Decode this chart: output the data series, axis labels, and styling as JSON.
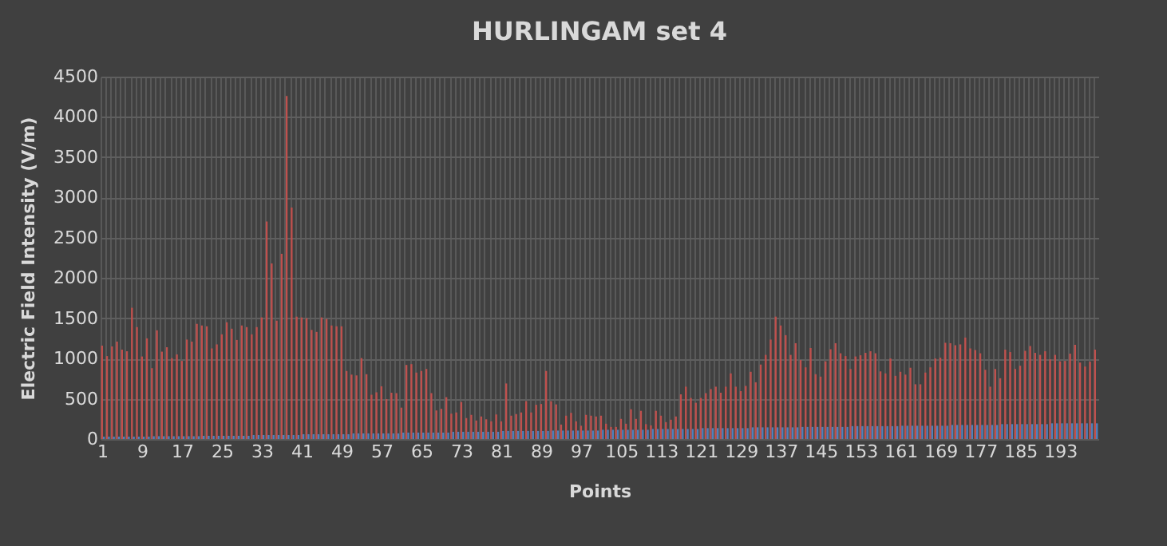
{
  "chart_data": {
    "type": "bar",
    "title": "HURLINGAM set 4",
    "xlabel": "Points",
    "ylabel": "Electric Field Intensity (V/m)",
    "categories": [
      "1",
      null,
      null,
      null,
      null,
      null,
      null,
      null,
      "9",
      null,
      null,
      null,
      null,
      null,
      null,
      null,
      "17",
      null,
      null,
      null,
      null,
      null,
      null,
      null,
      "25",
      null,
      null,
      null,
      null,
      null,
      null,
      null,
      "33",
      null,
      null,
      null,
      null,
      null,
      null,
      null,
      "41",
      null,
      null,
      null,
      null,
      null,
      null,
      null,
      "49",
      null,
      null,
      null,
      null,
      null,
      null,
      null,
      "57",
      null,
      null,
      null,
      null,
      null,
      null,
      null,
      "65",
      null,
      null,
      null,
      null,
      null,
      null,
      null,
      "73",
      null,
      null,
      null,
      null,
      null,
      null,
      null,
      "81",
      null,
      null,
      null,
      null,
      null,
      null,
      null,
      "89",
      null,
      null,
      null,
      null,
      null,
      null,
      null,
      "97",
      null,
      null,
      null,
      null,
      null,
      null,
      null,
      "105",
      null,
      null,
      null,
      null,
      null,
      null,
      null,
      "113",
      null,
      null,
      null,
      null,
      null,
      null,
      null,
      "121",
      null,
      null,
      null,
      null,
      null,
      null,
      null,
      "129",
      null,
      null,
      null,
      null,
      null,
      null,
      null,
      "137",
      null,
      null,
      null,
      null,
      null,
      null,
      null,
      "145",
      null,
      null,
      null,
      null,
      null,
      null,
      null,
      "153",
      null,
      null,
      null,
      null,
      null,
      null,
      null,
      "161",
      null,
      null,
      null,
      null,
      null,
      null,
      null,
      "169",
      null,
      null,
      null,
      null,
      null,
      null,
      null,
      "177",
      null,
      null,
      null,
      null,
      null,
      null,
      null,
      "185",
      null,
      null,
      null,
      null,
      null,
      null,
      null,
      "193",
      null,
      null,
      null,
      null,
      null,
      null,
      null
    ],
    "series": [
      {
        "color": "#c0504d",
        "values": [
          1160,
          1030,
          1150,
          1210,
          1110,
          1090,
          1630,
          1390,
          1025,
          1250,
          880,
          1350,
          1085,
          1140,
          1005,
          1050,
          970,
          1235,
          1210,
          1430,
          1410,
          1400,
          1125,
          1175,
          1300,
          1450,
          1370,
          1230,
          1410,
          1390,
          1300,
          1390,
          1510,
          2700,
          2180,
          1470,
          2300,
          4260,
          2875,
          1520,
          1510,
          1500,
          1355,
          1330,
          1510,
          1490,
          1410,
          1400,
          1400,
          845,
          800,
          790,
          1005,
          805,
          550,
          580,
          655,
          495,
          575,
          570,
          390,
          920,
          930,
          825,
          845,
          870,
          570,
          355,
          375,
          520,
          315,
          330,
          460,
          260,
          300,
          230,
          280,
          245,
          220,
          305,
          220,
          690,
          290,
          310,
          330,
          470,
          330,
          425,
          435,
          845,
          470,
          430,
          180,
          290,
          325,
          220,
          165,
          300,
          290,
          280,
          290,
          190,
          150,
          150,
          250,
          190,
          370,
          250,
          350,
          185,
          170,
          350,
          290,
          210,
          240,
          280,
          555,
          650,
          510,
          450,
          510,
          570,
          620,
          650,
          575,
          650,
          815,
          650,
          595,
          660,
          835,
          705,
          925,
          1045,
          1235,
          1520,
          1410,
          1290,
          1045,
          1190,
          980,
          890,
          1130,
          805,
          775,
          965,
          1115,
          1190,
          1065,
          1030,
          870,
          1025,
          1040,
          1070,
          1090,
          1065,
          840,
          815,
          1000,
          785,
          835,
          800,
          885,
          680,
          680,
          825,
          890,
          1000,
          1010,
          1195,
          1190,
          1165,
          1175,
          1260,
          1125,
          1105,
          1065,
          860,
          650,
          870,
          755,
          1110,
          1080,
          870,
          910,
          1095,
          1155,
          1070,
          1045,
          1090,
          990,
          1045,
          965,
          970,
          1060,
          1170,
          950,
          900,
          960,
          1110
        ]
      },
      {
        "color": "#4f81bd",
        "values": [
          30,
          30,
          30,
          30,
          30,
          30,
          30,
          30,
          30,
          30,
          35,
          35,
          35,
          35,
          35,
          35,
          35,
          35,
          35,
          35,
          40,
          40,
          40,
          40,
          40,
          40,
          40,
          40,
          40,
          40,
          50,
          50,
          50,
          50,
          50,
          50,
          50,
          50,
          50,
          50,
          60,
          60,
          60,
          60,
          60,
          60,
          60,
          60,
          60,
          60,
          70,
          70,
          70,
          70,
          70,
          70,
          70,
          70,
          70,
          70,
          80,
          80,
          80,
          80,
          80,
          80,
          80,
          80,
          80,
          80,
          90,
          90,
          90,
          90,
          90,
          90,
          90,
          90,
          90,
          90,
          100,
          100,
          100,
          100,
          100,
          100,
          100,
          100,
          100,
          100,
          105,
          105,
          105,
          105,
          105,
          105,
          105,
          105,
          105,
          105,
          115,
          115,
          115,
          115,
          115,
          115,
          115,
          115,
          115,
          115,
          125,
          125,
          125,
          125,
          125,
          125,
          125,
          125,
          125,
          125,
          135,
          135,
          135,
          135,
          135,
          135,
          135,
          135,
          135,
          135,
          145,
          145,
          145,
          145,
          145,
          145,
          145,
          145,
          145,
          145,
          150,
          150,
          150,
          150,
          150,
          150,
          150,
          150,
          150,
          150,
          160,
          160,
          160,
          160,
          160,
          160,
          160,
          160,
          160,
          160,
          165,
          165,
          165,
          165,
          165,
          165,
          165,
          165,
          165,
          165,
          175,
          175,
          175,
          175,
          175,
          175,
          175,
          175,
          175,
          175,
          185,
          185,
          185,
          185,
          185,
          185,
          185,
          185,
          185,
          185,
          195,
          195,
          195,
          195,
          195,
          195,
          195,
          195,
          195,
          195
        ]
      }
    ],
    "ylim": [
      0,
      4500
    ],
    "yticks": [
      0,
      500,
      1000,
      1500,
      2000,
      2500,
      3000,
      3500,
      4000,
      4500
    ],
    "grid": true
  }
}
